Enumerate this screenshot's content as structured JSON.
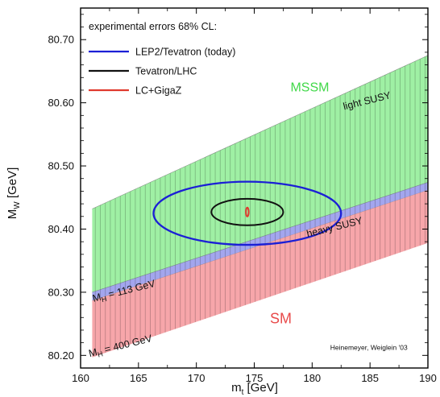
{
  "chart_data": {
    "type": "area",
    "xlabel": {
      "main": "m",
      "sub": "t",
      "unit": " [GeV]"
    },
    "ylabel": {
      "main": "M",
      "sub": "W",
      "unit": " [GeV]"
    },
    "xlim": [
      160,
      190
    ],
    "ylim": [
      80.18,
      80.75
    ],
    "x_ticks": [
      160,
      165,
      170,
      175,
      180,
      185,
      190
    ],
    "x_tick_labels": [
      "160",
      "165",
      "170",
      "175",
      "180",
      "185",
      "190"
    ],
    "y_ticks": [
      80.2,
      80.3,
      80.4,
      80.5,
      80.6,
      80.7
    ],
    "y_tick_labels": [
      "80.20",
      "80.30",
      "80.40",
      "80.50",
      "80.60",
      "80.70"
    ],
    "bands": [
      {
        "name": "MSSM",
        "label": "MSSM",
        "color": "#9ff0a4",
        "upper": [
          [
            161,
            80.432
          ],
          [
            190,
            80.675
          ]
        ],
        "lower": [
          [
            161,
            80.3
          ],
          [
            190,
            80.474
          ]
        ]
      },
      {
        "name": "SM",
        "label": "SM",
        "color": "#f7a6aa",
        "upper": [
          [
            161,
            80.287
          ],
          [
            190,
            80.462
          ]
        ],
        "lower": [
          [
            161,
            80.197
          ],
          [
            190,
            80.378
          ]
        ]
      },
      {
        "name": "overlap",
        "label": "",
        "color": "#a3a6ee",
        "upper": [
          [
            161,
            80.3
          ],
          [
            190,
            80.474
          ]
        ],
        "lower": [
          [
            161,
            80.287
          ],
          [
            190,
            80.462
          ]
        ]
      }
    ],
    "ellipses": [
      {
        "name": "LEP2/Tevatron (today)",
        "color": "#1b1fd6",
        "cx": 174.4,
        "cy": 80.425,
        "rx": 8.1,
        "ry": 0.05,
        "stroke": 2.3
      },
      {
        "name": "Tevatron/LHC",
        "color": "#111111",
        "cx": 174.4,
        "cy": 80.427,
        "rx": 3.1,
        "ry": 0.021,
        "stroke": 2.0
      },
      {
        "name": "LC+GigaZ",
        "color": "#e03a2e",
        "cx": 174.4,
        "cy": 80.427,
        "rx": 0.12,
        "ry": 0.007,
        "stroke": 2.0
      }
    ],
    "legend": {
      "title": "experimental errors 68% CL:",
      "placement": "top-left",
      "entries": [
        {
          "label": "LEP2/Tevatron (today)",
          "color": "#1b1fd6"
        },
        {
          "label": "Tevatron/LHC",
          "color": "#111111"
        },
        {
          "label": "LC+GigaZ",
          "color": "#e03a2e"
        }
      ]
    },
    "annotations": [
      {
        "text": "MSSM",
        "x": 179.8,
        "y": 80.618,
        "angle": 0,
        "color": "#40d848",
        "style": "region"
      },
      {
        "text": "light SUSY",
        "x": 184.8,
        "y": 80.598,
        "angle": -14,
        "color": "#111111",
        "style": "note"
      },
      {
        "text": "heavy SUSY",
        "x": 182.0,
        "y": 80.398,
        "angle": -14,
        "color": "#111111",
        "style": "note"
      },
      {
        "text": "SM",
        "x": 177.3,
        "y": 80.251,
        "angle": 0,
        "color": "#e84a4a",
        "style": "region"
      },
      {
        "text": "Heinemeyer, Weiglein '03",
        "x": 184.9,
        "y": 80.2085,
        "angle": 0,
        "color": "#111111",
        "style": "credit"
      }
    ],
    "higgs_labels": [
      {
        "mass": "113 GeV",
        "x": 163.8,
        "y": 80.297,
        "angle": -14
      },
      {
        "mass": "400 GeV",
        "x": 163.5,
        "y": 80.21,
        "angle": -14
      }
    ],
    "higgs_label_parts": {
      "symbol": "M",
      "sub": "H",
      "eq": " = "
    },
    "grid": false
  }
}
